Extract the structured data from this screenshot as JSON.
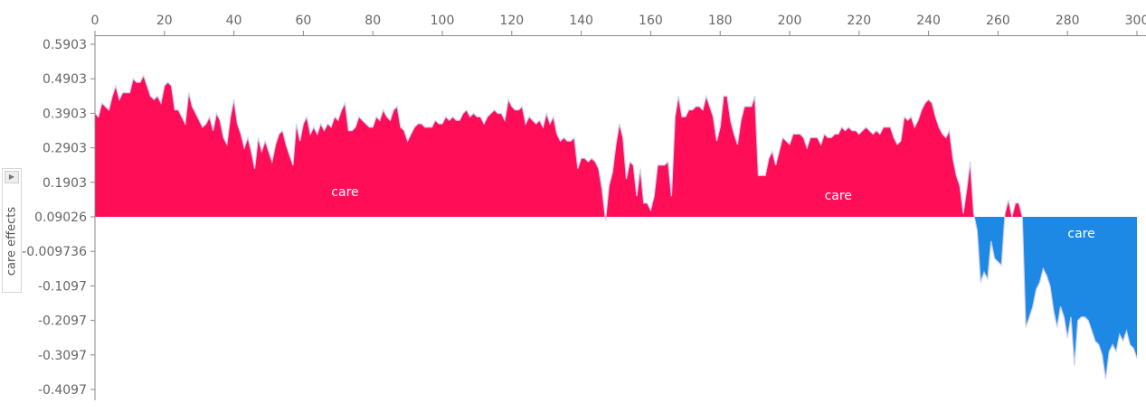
{
  "chart_data": {
    "type": "area",
    "xlim": [
      0,
      300
    ],
    "ylim": [
      -0.4097,
      0.5903
    ],
    "base_value": 0.09026,
    "x_ticks": [
      "0",
      "20",
      "40",
      "60",
      "80",
      "100",
      "120",
      "140",
      "160",
      "180",
      "200",
      "220",
      "240",
      "260",
      "280",
      "300"
    ],
    "y_ticks": [
      "0.5903",
      "0.4903",
      "0.3903",
      "0.2903",
      "0.1903",
      "0.09026",
      "-0.009736",
      "-0.1097",
      "-0.2097",
      "-0.3097",
      "-0.4097"
    ],
    "ylabel": "care effects",
    "area_labels": [
      {
        "text": "care",
        "x": 72,
        "y": 0.15
      },
      {
        "text": "care",
        "x": 214,
        "y": 0.14
      },
      {
        "text": "care",
        "x": 284,
        "y": 0.03
      }
    ],
    "colors": {
      "positive": "#ff0d57",
      "negative": "#1e88e5",
      "outline": "#cdd0f5",
      "axis": "#888888",
      "tick_text": "#666666"
    },
    "series": [
      {
        "values": [
          [
            0,
            0.39
          ],
          [
            1,
            0.38
          ],
          [
            2,
            0.42
          ],
          [
            3,
            0.41
          ],
          [
            4,
            0.4
          ],
          [
            5,
            0.44
          ],
          [
            6,
            0.47
          ],
          [
            7,
            0.43
          ],
          [
            8,
            0.45
          ],
          [
            9,
            0.45
          ],
          [
            10,
            0.45
          ],
          [
            11,
            0.49
          ],
          [
            12,
            0.48
          ],
          [
            13,
            0.48
          ],
          [
            14,
            0.5
          ],
          [
            15,
            0.47
          ],
          [
            16,
            0.44
          ],
          [
            17,
            0.43
          ],
          [
            18,
            0.44
          ],
          [
            19,
            0.42
          ],
          [
            20,
            0.47
          ],
          [
            21,
            0.48
          ],
          [
            22,
            0.47
          ],
          [
            23,
            0.4
          ],
          [
            24,
            0.4
          ],
          [
            25,
            0.38
          ],
          [
            26,
            0.36
          ],
          [
            27,
            0.45
          ],
          [
            28,
            0.41
          ],
          [
            29,
            0.39
          ],
          [
            30,
            0.37
          ],
          [
            31,
            0.35
          ],
          [
            32,
            0.36
          ],
          [
            33,
            0.38
          ],
          [
            34,
            0.34
          ],
          [
            35,
            0.39
          ],
          [
            36,
            0.37
          ],
          [
            37,
            0.32
          ],
          [
            38,
            0.3
          ],
          [
            39,
            0.38
          ],
          [
            40,
            0.43
          ],
          [
            41,
            0.36
          ],
          [
            42,
            0.33
          ],
          [
            43,
            0.29
          ],
          [
            44,
            0.32
          ],
          [
            45,
            0.28
          ],
          [
            46,
            0.23
          ],
          [
            47,
            0.32
          ],
          [
            48,
            0.28
          ],
          [
            49,
            0.31
          ],
          [
            50,
            0.28
          ],
          [
            51,
            0.25
          ],
          [
            52,
            0.3
          ],
          [
            53,
            0.33
          ],
          [
            54,
            0.34
          ],
          [
            55,
            0.3
          ],
          [
            56,
            0.27
          ],
          [
            57,
            0.24
          ],
          [
            58,
            0.36
          ],
          [
            59,
            0.31
          ],
          [
            60,
            0.36
          ],
          [
            61,
            0.38
          ],
          [
            62,
            0.33
          ],
          [
            63,
            0.35
          ],
          [
            64,
            0.33
          ],
          [
            65,
            0.36
          ],
          [
            66,
            0.34
          ],
          [
            67,
            0.36
          ],
          [
            68,
            0.35
          ],
          [
            69,
            0.38
          ],
          [
            70,
            0.37
          ],
          [
            71,
            0.4
          ],
          [
            72,
            0.42
          ],
          [
            73,
            0.34
          ],
          [
            74,
            0.34
          ],
          [
            75,
            0.35
          ],
          [
            76,
            0.38
          ],
          [
            77,
            0.37
          ],
          [
            78,
            0.36
          ],
          [
            79,
            0.35
          ],
          [
            80,
            0.35
          ],
          [
            81,
            0.38
          ],
          [
            82,
            0.37
          ],
          [
            83,
            0.4
          ],
          [
            84,
            0.38
          ],
          [
            85,
            0.37
          ],
          [
            86,
            0.4
          ],
          [
            87,
            0.41
          ],
          [
            88,
            0.35
          ],
          [
            89,
            0.34
          ],
          [
            90,
            0.31
          ],
          [
            91,
            0.33
          ],
          [
            92,
            0.35
          ],
          [
            93,
            0.36
          ],
          [
            94,
            0.36
          ],
          [
            95,
            0.35
          ],
          [
            96,
            0.35
          ],
          [
            97,
            0.35
          ],
          [
            98,
            0.37
          ],
          [
            99,
            0.36
          ],
          [
            100,
            0.36
          ],
          [
            101,
            0.38
          ],
          [
            102,
            0.37
          ],
          [
            103,
            0.38
          ],
          [
            104,
            0.37
          ],
          [
            105,
            0.37
          ],
          [
            106,
            0.39
          ],
          [
            107,
            0.4
          ],
          [
            108,
            0.38
          ],
          [
            109,
            0.39
          ],
          [
            110,
            0.38
          ],
          [
            111,
            0.38
          ],
          [
            112,
            0.36
          ],
          [
            113,
            0.38
          ],
          [
            114,
            0.39
          ],
          [
            115,
            0.4
          ],
          [
            116,
            0.39
          ],
          [
            117,
            0.39
          ],
          [
            118,
            0.37
          ],
          [
            119,
            0.43
          ],
          [
            120,
            0.41
          ],
          [
            121,
            0.4
          ],
          [
            122,
            0.4
          ],
          [
            123,
            0.41
          ],
          [
            124,
            0.36
          ],
          [
            125,
            0.38
          ],
          [
            126,
            0.37
          ],
          [
            127,
            0.36
          ],
          [
            128,
            0.37
          ],
          [
            129,
            0.35
          ],
          [
            130,
            0.39
          ],
          [
            131,
            0.36
          ],
          [
            132,
            0.38
          ],
          [
            133,
            0.33
          ],
          [
            134,
            0.31
          ],
          [
            135,
            0.32
          ],
          [
            136,
            0.31
          ],
          [
            137,
            0.31
          ],
          [
            138,
            0.32
          ],
          [
            139,
            0.23
          ],
          [
            140,
            0.26
          ],
          [
            141,
            0.26
          ],
          [
            142,
            0.25
          ],
          [
            143,
            0.26
          ],
          [
            144,
            0.25
          ],
          [
            145,
            0.23
          ],
          [
            146,
            0.17
          ],
          [
            147,
            0.08
          ],
          [
            148,
            0.18
          ],
          [
            149,
            0.22
          ],
          [
            150,
            0.3
          ],
          [
            151,
            0.36
          ],
          [
            152,
            0.32
          ],
          [
            153,
            0.2
          ],
          [
            154,
            0.25
          ],
          [
            155,
            0.24
          ],
          [
            156,
            0.15
          ],
          [
            157,
            0.23
          ],
          [
            158,
            0.13
          ],
          [
            159,
            0.13
          ],
          [
            160,
            0.11
          ],
          [
            161,
            0.15
          ],
          [
            162,
            0.24
          ],
          [
            163,
            0.24
          ],
          [
            164,
            0.24
          ],
          [
            165,
            0.25
          ],
          [
            166,
            0.15
          ],
          [
            167,
            0.38
          ],
          [
            168,
            0.44
          ],
          [
            169,
            0.38
          ],
          [
            170,
            0.38
          ],
          [
            171,
            0.4
          ],
          [
            172,
            0.4
          ],
          [
            173,
            0.41
          ],
          [
            174,
            0.41
          ],
          [
            175,
            0.4
          ],
          [
            176,
            0.44
          ],
          [
            177,
            0.41
          ],
          [
            178,
            0.38
          ],
          [
            179,
            0.31
          ],
          [
            180,
            0.35
          ],
          [
            181,
            0.44
          ],
          [
            182,
            0.44
          ],
          [
            183,
            0.37
          ],
          [
            184,
            0.33
          ],
          [
            185,
            0.3
          ],
          [
            186,
            0.37
          ],
          [
            187,
            0.41
          ],
          [
            188,
            0.41
          ],
          [
            189,
            0.41
          ],
          [
            190,
            0.44
          ],
          [
            191,
            0.21
          ],
          [
            192,
            0.21
          ],
          [
            193,
            0.21
          ],
          [
            194,
            0.26
          ],
          [
            195,
            0.28
          ],
          [
            196,
            0.24
          ],
          [
            197,
            0.28
          ],
          [
            198,
            0.32
          ],
          [
            199,
            0.31
          ],
          [
            200,
            0.3
          ],
          [
            201,
            0.33
          ],
          [
            202,
            0.33
          ],
          [
            203,
            0.33
          ],
          [
            204,
            0.32
          ],
          [
            205,
            0.29
          ],
          [
            206,
            0.32
          ],
          [
            207,
            0.32
          ],
          [
            208,
            0.32
          ],
          [
            209,
            0.3
          ],
          [
            210,
            0.33
          ],
          [
            211,
            0.32
          ],
          [
            212,
            0.32
          ],
          [
            213,
            0.33
          ],
          [
            214,
            0.33
          ],
          [
            215,
            0.35
          ],
          [
            216,
            0.34
          ],
          [
            217,
            0.35
          ],
          [
            218,
            0.34
          ],
          [
            219,
            0.34
          ],
          [
            220,
            0.33
          ],
          [
            221,
            0.34
          ],
          [
            222,
            0.35
          ],
          [
            223,
            0.34
          ],
          [
            224,
            0.33
          ],
          [
            225,
            0.34
          ],
          [
            226,
            0.33
          ],
          [
            227,
            0.35
          ],
          [
            228,
            0.35
          ],
          [
            229,
            0.35
          ],
          [
            230,
            0.32
          ],
          [
            231,
            0.3
          ],
          [
            232,
            0.31
          ],
          [
            233,
            0.38
          ],
          [
            234,
            0.37
          ],
          [
            235,
            0.38
          ],
          [
            236,
            0.35
          ],
          [
            237,
            0.37
          ],
          [
            238,
            0.4
          ],
          [
            239,
            0.42
          ],
          [
            240,
            0.43
          ],
          [
            241,
            0.42
          ],
          [
            242,
            0.38
          ],
          [
            243,
            0.35
          ],
          [
            244,
            0.33
          ],
          [
            245,
            0.32
          ],
          [
            246,
            0.34
          ],
          [
            247,
            0.26
          ],
          [
            248,
            0.21
          ],
          [
            249,
            0.18
          ],
          [
            250,
            0.1
          ],
          [
            251,
            0.17
          ],
          [
            252,
            0.25
          ],
          [
            253,
            0.1
          ],
          [
            254,
            0.05
          ],
          [
            255,
            -0.1
          ],
          [
            256,
            -0.07
          ],
          [
            257,
            -0.09
          ],
          [
            258,
            0.02
          ],
          [
            259,
            -0.03
          ],
          [
            260,
            -0.04
          ],
          [
            261,
            -0.05
          ],
          [
            262,
            0.1
          ],
          [
            263,
            0.14
          ],
          [
            264,
            0.09
          ],
          [
            265,
            0.13
          ],
          [
            266,
            0.13
          ],
          [
            267,
            0.09
          ],
          [
            268,
            -0.23
          ],
          [
            269,
            -0.2
          ],
          [
            270,
            -0.17
          ],
          [
            271,
            -0.12
          ],
          [
            272,
            -0.1
          ],
          [
            273,
            -0.06
          ],
          [
            274,
            -0.08
          ],
          [
            275,
            -0.11
          ],
          [
            276,
            -0.18
          ],
          [
            277,
            -0.23
          ],
          [
            278,
            -0.17
          ],
          [
            279,
            -0.2
          ],
          [
            280,
            -0.26
          ],
          [
            281,
            -0.2
          ],
          [
            282,
            -0.34
          ],
          [
            283,
            -0.21
          ],
          [
            284,
            -0.2
          ],
          [
            285,
            -0.2
          ],
          [
            286,
            -0.21
          ],
          [
            287,
            -0.24
          ],
          [
            288,
            -0.27
          ],
          [
            289,
            -0.28
          ],
          [
            290,
            -0.31
          ],
          [
            291,
            -0.38
          ],
          [
            292,
            -0.3
          ],
          [
            293,
            -0.28
          ],
          [
            294,
            -0.3
          ],
          [
            295,
            -0.25
          ],
          [
            296,
            -0.27
          ],
          [
            297,
            -0.24
          ],
          [
            298,
            -0.28
          ],
          [
            299,
            -0.29
          ],
          [
            300,
            -0.32
          ]
        ]
      }
    ]
  }
}
